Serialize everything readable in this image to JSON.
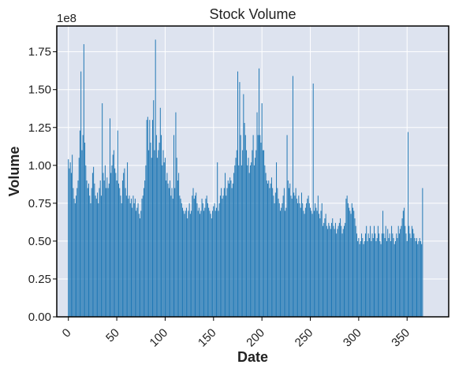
{
  "chart_data": {
    "type": "bar",
    "title": "Stock Volume",
    "xlabel": "Date",
    "ylabel": "Volume",
    "y_offset_label": "1e8",
    "y_multiplier": 100000000,
    "xlim": [
      -12,
      393
    ],
    "ylim": [
      0,
      1.92
    ],
    "x_ticks": [
      0,
      50,
      100,
      150,
      200,
      250,
      300,
      350
    ],
    "y_ticks": [
      0.0,
      0.25,
      0.5,
      0.75,
      1.0,
      1.25,
      1.5,
      1.75
    ],
    "y_tick_labels": [
      "0.00",
      "0.25",
      "0.50",
      "0.75",
      "1.00",
      "1.25",
      "1.50",
      "1.75"
    ],
    "grid": true,
    "bar_color": "#1f77b4",
    "plot_background": "#dde3ef",
    "grid_color": "#ffffff",
    "series": [
      {
        "x_start": 0,
        "values": [
          1.04,
          0.98,
          1.02,
          0.95,
          1.07,
          0.85,
          0.78,
          0.75,
          0.8,
          0.85,
          0.9,
          1.05,
          1.23,
          1.62,
          1.1,
          1.2,
          1.8,
          1.15,
          1.0,
          0.9,
          0.85,
          0.88,
          0.8,
          0.75,
          0.85,
          0.95,
          0.99,
          0.88,
          0.8,
          0.78,
          0.82,
          0.75,
          0.85,
          0.9,
          0.8,
          1.41,
          0.95,
          0.9,
          1.0,
          0.85,
          0.92,
          0.85,
          0.88,
          1.31,
          0.95,
          1.0,
          1.07,
          1.1,
          0.98,
          0.95,
          0.9,
          1.23,
          0.88,
          0.85,
          0.8,
          0.75,
          0.9,
          0.95,
          0.98,
          0.85,
          0.8,
          1.02,
          0.78,
          0.8,
          0.75,
          0.78,
          0.72,
          0.8,
          0.75,
          0.78,
          0.7,
          0.72,
          0.75,
          0.68,
          0.65,
          0.7,
          0.78,
          0.8,
          0.85,
          0.9,
          1.0,
          1.3,
          1.32,
          1.1,
          1.3,
          1.15,
          1.05,
          1.3,
          1.43,
          1.1,
          1.83,
          1.2,
          1.05,
          1.1,
          1.15,
          1.38,
          1.2,
          1.0,
          1.1,
          1.02,
          1.05,
          0.9,
          0.95,
          0.88,
          0.85,
          0.9,
          0.8,
          0.85,
          0.78,
          1.2,
          0.85,
          1.35,
          1.05,
          0.9,
          0.95,
          0.8,
          0.78,
          0.75,
          0.72,
          0.7,
          0.68,
          0.7,
          0.72,
          0.65,
          0.7,
          0.75,
          0.68,
          0.7,
          0.8,
          0.85,
          0.78,
          0.8,
          0.82,
          0.75,
          0.7,
          0.72,
          0.68,
          0.7,
          0.78,
          0.75,
          0.7,
          0.72,
          0.78,
          0.8,
          0.75,
          0.72,
          0.7,
          0.68,
          0.65,
          0.7,
          0.73,
          0.75,
          0.7,
          0.72,
          1.02,
          0.7,
          0.75,
          0.8,
          0.85,
          0.78,
          0.8,
          0.85,
          0.95,
          0.8,
          0.85,
          0.9,
          0.88,
          0.92,
          0.9,
          0.85,
          0.88,
          0.95,
          1.0,
          1.05,
          1.1,
          1.62,
          1.0,
          1.55,
          1.2,
          1.0,
          1.1,
          1.47,
          1.28,
          1.2,
          1.1,
          1.0,
          1.05,
          0.95,
          1.0,
          1.02,
          1.1,
          1.2,
          1.0,
          1.05,
          1.1,
          1.35,
          1.2,
          1.64,
          1.2,
          1.15,
          1.41,
          1.1,
          1.1,
          1.0,
          0.95,
          0.9,
          0.88,
          0.9,
          0.85,
          0.88,
          0.92,
          0.85,
          0.8,
          0.75,
          0.82,
          1.02,
          0.85,
          0.78,
          0.75,
          0.7,
          0.72,
          0.75,
          0.8,
          0.85,
          0.7,
          0.72,
          1.2,
          0.9,
          0.85,
          0.88,
          0.8,
          0.78,
          1.59,
          0.82,
          0.8,
          0.85,
          0.78,
          0.75,
          0.8,
          0.75,
          0.72,
          0.82,
          0.75,
          0.7,
          0.68,
          0.72,
          0.75,
          0.78,
          0.8,
          0.75,
          0.72,
          0.7,
          0.68,
          1.54,
          0.7,
          0.75,
          0.72,
          0.7,
          0.8,
          0.68,
          0.65,
          0.7,
          0.75,
          0.6,
          0.62,
          0.65,
          0.68,
          0.6,
          0.58,
          0.62,
          0.6,
          0.58,
          0.62,
          0.65,
          0.6,
          0.58,
          0.62,
          0.55,
          0.58,
          0.6,
          0.62,
          0.65,
          0.6,
          0.55,
          0.58,
          0.6,
          0.62,
          0.78,
          0.8,
          0.75,
          0.72,
          0.7,
          0.68,
          0.75,
          0.72,
          0.7,
          0.65,
          0.6,
          0.55,
          0.5,
          0.52,
          0.48,
          0.5,
          0.55,
          0.52,
          0.48,
          0.5,
          0.55,
          0.6,
          0.5,
          0.55,
          0.52,
          0.6,
          0.5,
          0.55,
          0.52,
          0.6,
          0.55,
          0.5,
          0.52,
          0.6,
          0.55,
          0.5,
          0.48,
          0.55,
          0.7,
          0.55,
          0.52,
          0.6,
          0.5,
          0.58,
          0.52,
          0.55,
          0.5,
          0.6,
          0.55,
          0.52,
          0.48,
          0.5,
          0.55,
          0.52,
          0.6,
          0.55,
          0.58,
          0.6,
          0.65,
          0.7,
          0.72,
          0.6,
          0.55,
          0.5,
          1.22,
          0.6,
          0.55,
          0.52,
          0.6,
          0.58,
          0.55,
          0.52,
          0.5,
          0.52,
          0.48,
          0.5,
          0.52,
          0.5,
          0.48,
          0.85
        ]
      }
    ]
  }
}
